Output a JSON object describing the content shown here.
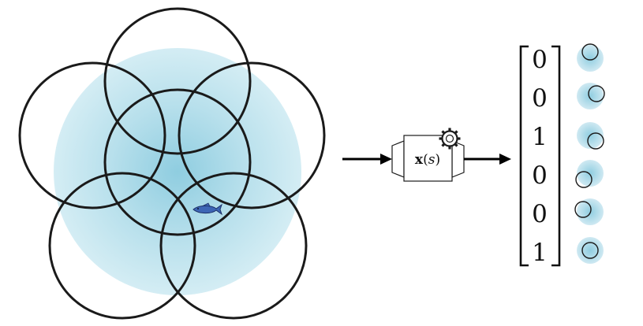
{
  "encoder": {
    "symbol": "x",
    "open_paren": "(",
    "argument": "s",
    "close_paren": ")",
    "icon": "gear-icon"
  },
  "vector": {
    "bits": [
      "0",
      "0",
      "1",
      "0",
      "0",
      "1"
    ]
  },
  "environment": {
    "agent_icon": "fish-icon",
    "field_color": "#a9d8e6",
    "outline_color": "#1a1a1a"
  }
}
